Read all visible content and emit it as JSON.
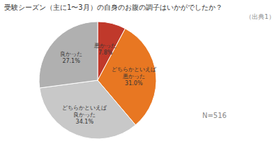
{
  "chart_data": {
    "type": "pie",
    "title": "受験シーズン（主に1〜3月）の自身のお腹の調子はいかがでしたか？",
    "annotations": [
      "（出典1）",
      "N=516"
    ],
    "categories": [
      "悪かった",
      "どちらかといえば\n悪かった",
      "どちらかといえば\n良かった",
      "良かった"
    ],
    "values": [
      7.8,
      31.0,
      34.1,
      27.1
    ],
    "value_labels": [
      "7.8%",
      "31.0%",
      "34.1%",
      "27.1%"
    ],
    "data_labels": true,
    "colors": [
      "#c0392b",
      "#e87722",
      "#c8c8c8",
      "#b0b0b0"
    ]
  }
}
